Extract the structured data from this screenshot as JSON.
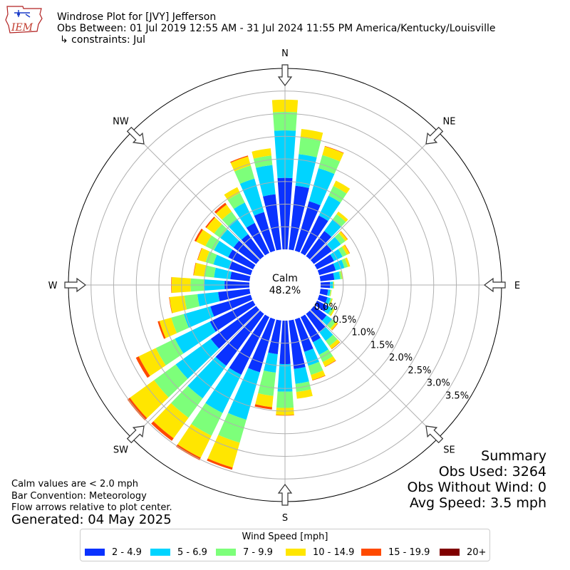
{
  "header": {
    "title": "Windrose Plot for [JVY] Jefferson",
    "period": "Obs Between: 01 Jul 2019 12:55 AM - 31 Jul 2024 11:55 PM America/Kentucky/Louisville",
    "constraints": "↳ constraints: Jul",
    "logo_text": "IEM"
  },
  "notes": {
    "calm_definition": "Calm values are < 2.0 mph",
    "bar_convention": "Bar Convention: Meteorology",
    "flow_arrows": "Flow arrows relative to plot center.",
    "generated": "Generated: 04 May 2025"
  },
  "summary": {
    "title": "Summary",
    "obs_used": "Obs Used: 3264",
    "obs_without_wind": "Obs Without Wind: 0",
    "avg_speed": "Avg Speed: 3.5 mph"
  },
  "legend": {
    "title": "Wind Speed [mph]",
    "items": [
      {
        "label": "2 - 4.9",
        "color": "#0a32ff"
      },
      {
        "label": "5 - 6.9",
        "color": "#00d4ff"
      },
      {
        "label": "7 - 9.9",
        "color": "#7dff7a"
      },
      {
        "label": "10 - 14.9",
        "color": "#ffe600"
      },
      {
        "label": "15 - 19.9",
        "color": "#ff4a00"
      },
      {
        "label": "20+",
        "color": "#800000"
      }
    ]
  },
  "chart_data": {
    "type": "polar-bar",
    "title": "Windrose Plot for [JVY] Jefferson",
    "calm_label": "Calm",
    "calm_value": "48.2%",
    "radial_ticks": [
      "0.0%",
      "0.5%",
      "1.0%",
      "1.5%",
      "2.0%",
      "2.5%",
      "3.0%",
      "3.5%"
    ],
    "radial_max": 4.0,
    "compass_labels": [
      "N",
      "NE",
      "E",
      "SE",
      "S",
      "SW",
      "W",
      "NW"
    ],
    "direction_step_deg": 10,
    "speed_bins": [
      "2 - 4.9",
      "5 - 6.9",
      "7 - 9.9",
      "10 - 14.9",
      "15 - 19.9",
      "20+"
    ],
    "bins_cumulative_percent": [
      {
        "dir": 0,
        "cum": [
          1.58,
          2.63,
          3.04,
          3.31,
          3.31,
          3.31
        ]
      },
      {
        "dir": 10,
        "cum": [
          1.42,
          2.12,
          2.49,
          2.68,
          2.68,
          2.68
        ]
      },
      {
        "dir": 20,
        "cum": [
          1.14,
          1.9,
          2.2,
          2.4,
          2.41,
          2.41
        ]
      },
      {
        "dir": 30,
        "cum": [
          0.92,
          1.41,
          1.65,
          1.78,
          1.78,
          1.78
        ]
      },
      {
        "dir": 40,
        "cum": [
          0.69,
          1.01,
          1.15,
          1.22,
          1.22,
          1.22
        ]
      },
      {
        "dir": 50,
        "cum": [
          0.5,
          0.74,
          0.86,
          0.92,
          0.93,
          0.93
        ]
      },
      {
        "dir": 60,
        "cum": [
          0.42,
          0.63,
          0.73,
          0.8,
          0.81,
          0.81
        ]
      },
      {
        "dir": 70,
        "cum": [
          0.38,
          0.58,
          0.66,
          0.71,
          0.71,
          0.71
        ]
      },
      {
        "dir": 80,
        "cum": [
          0.31,
          0.44,
          0.48,
          0.5,
          0.5,
          0.5
        ]
      },
      {
        "dir": 90,
        "cum": [
          0.21,
          0.27,
          0.29,
          0.3,
          0.3,
          0.3
        ]
      },
      {
        "dir": 100,
        "cum": [
          0.17,
          0.22,
          0.24,
          0.25,
          0.25,
          0.25
        ]
      },
      {
        "dir": 110,
        "cum": [
          0.19,
          0.26,
          0.29,
          0.31,
          0.31,
          0.31
        ]
      },
      {
        "dir": 120,
        "cum": [
          0.26,
          0.36,
          0.41,
          0.44,
          0.44,
          0.44
        ]
      },
      {
        "dir": 130,
        "cum": [
          0.35,
          0.51,
          0.6,
          0.65,
          0.66,
          0.66
        ]
      },
      {
        "dir": 140,
        "cum": [
          0.5,
          0.74,
          0.88,
          0.96,
          0.97,
          0.97
        ]
      },
      {
        "dir": 150,
        "cum": [
          0.62,
          0.93,
          1.11,
          1.22,
          1.23,
          1.23
        ]
      },
      {
        "dir": 160,
        "cum": [
          0.75,
          1.07,
          1.28,
          1.4,
          1.41,
          1.41
        ]
      },
      {
        "dir": 170,
        "cum": [
          1.08,
          1.41,
          1.59,
          1.74,
          1.74,
          1.74
        ]
      },
      {
        "dir": 180,
        "cum": [
          0.96,
          1.57,
          1.93,
          2.09,
          2.1,
          2.1
        ]
      },
      {
        "dir": 190,
        "cum": [
          0.75,
          1.16,
          1.68,
          1.93,
          1.98,
          1.98
        ]
      },
      {
        "dir": 200,
        "cum": [
          1.22,
          2.31,
          2.84,
          3.41,
          3.46,
          3.46
        ]
      },
      {
        "dir": 210,
        "cum": [
          1.42,
          2.36,
          2.92,
          3.46,
          3.52,
          3.52
        ]
      },
      {
        "dir": 220,
        "cum": [
          1.42,
          2.31,
          2.84,
          3.4,
          3.47,
          3.47
        ]
      },
      {
        "dir": 230,
        "cum": [
          1.24,
          2.2,
          2.79,
          3.45,
          3.52,
          3.52
        ]
      },
      {
        "dir": 240,
        "cum": [
          1.06,
          1.92,
          2.39,
          2.81,
          2.88,
          2.88
        ]
      },
      {
        "dir": 250,
        "cum": [
          0.93,
          1.54,
          1.83,
          2.1,
          2.14,
          2.14
        ]
      },
      {
        "dir": 260,
        "cum": [
          0.7,
          1.16,
          1.45,
          1.78,
          1.79,
          1.79
        ]
      },
      {
        "dir": 270,
        "cum": [
          0.55,
          1.0,
          1.3,
          1.72,
          1.73,
          1.73
        ]
      },
      {
        "dir": 280,
        "cum": [
          0.43,
          0.79,
          1.01,
          1.24,
          1.25,
          1.25
        ]
      },
      {
        "dir": 290,
        "cum": [
          0.51,
          0.86,
          1.04,
          1.22,
          1.23,
          1.23
        ]
      },
      {
        "dir": 300,
        "cum": [
          0.61,
          0.96,
          1.17,
          1.4,
          1.44,
          1.44
        ]
      },
      {
        "dir": 310,
        "cum": [
          0.62,
          0.98,
          1.15,
          1.36,
          1.39,
          1.39
        ]
      },
      {
        "dir": 320,
        "cum": [
          0.6,
          1.02,
          1.22,
          1.41,
          1.46,
          1.46
        ]
      },
      {
        "dir": 330,
        "cum": [
          0.74,
          1.24,
          1.48,
          1.62,
          1.62,
          1.62
        ]
      },
      {
        "dir": 340,
        "cum": [
          0.89,
          1.66,
          1.96,
          2.17,
          2.19,
          2.19
        ]
      },
      {
        "dir": 350,
        "cum": [
          1.23,
          1.88,
          2.09,
          2.25,
          2.25,
          2.25
        ]
      }
    ],
    "grid": true
  }
}
